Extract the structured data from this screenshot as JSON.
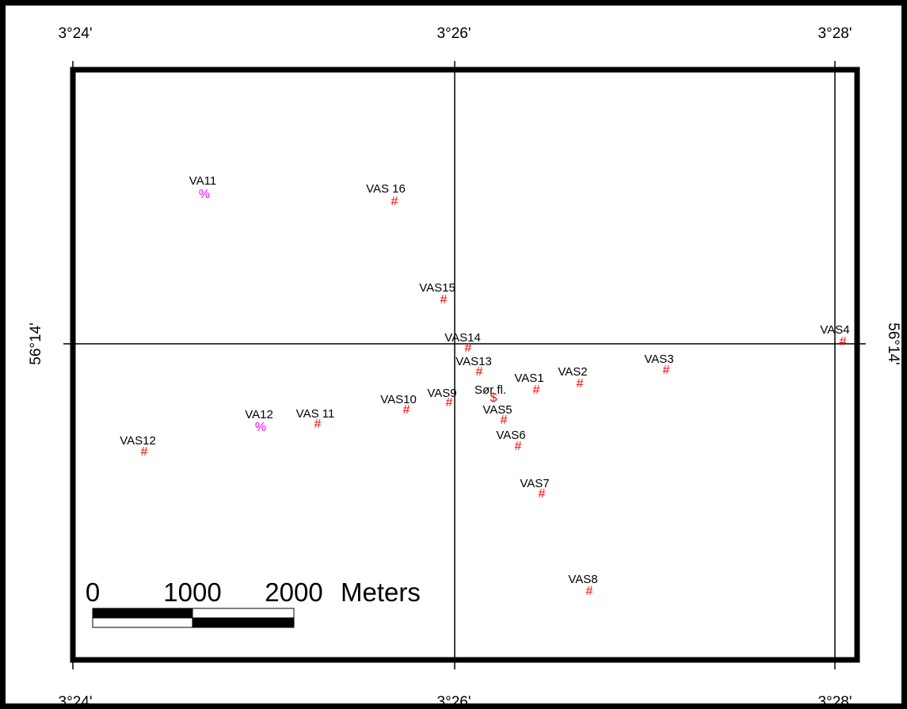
{
  "map": {
    "lon_labels": [
      {
        "name": "lon-3-24",
        "text": "3°24'"
      },
      {
        "name": "lon-3-26",
        "text": "3°26'"
      },
      {
        "name": "lon-3-28",
        "text": "3°28'"
      }
    ],
    "lat_labels": [
      {
        "name": "lat-56-14",
        "text": "56°14'"
      }
    ],
    "colors": {
      "frame": "#000000",
      "hash_marker": "#ff0000",
      "percent_marker": "#ff00ff",
      "dollar_marker": "#ff0000"
    },
    "sites": [
      {
        "name": "VA11",
        "label": "VA11",
        "symbol": "%"
      },
      {
        "name": "VAS16",
        "label": "VAS 16",
        "symbol": "#"
      },
      {
        "name": "VAS15",
        "label": "VAS15",
        "symbol": "#"
      },
      {
        "name": "VAS14",
        "label": "VAS14",
        "symbol": "#"
      },
      {
        "name": "VAS4",
        "label": "VAS4",
        "symbol": "#"
      },
      {
        "name": "VAS13",
        "label": "VAS13",
        "symbol": "#"
      },
      {
        "name": "VAS3",
        "label": "VAS3",
        "symbol": "#"
      },
      {
        "name": "VAS2",
        "label": "VAS2",
        "symbol": "#"
      },
      {
        "name": "VAS1",
        "label": "VAS1",
        "symbol": "#"
      },
      {
        "name": "Sorfl",
        "label": "Sør fl.",
        "symbol": "$"
      },
      {
        "name": "VAS9",
        "label": "VAS9",
        "symbol": "#"
      },
      {
        "name": "VAS10",
        "label": "VAS10",
        "symbol": "#"
      },
      {
        "name": "VAS5",
        "label": "VAS5",
        "symbol": "#"
      },
      {
        "name": "VAS11",
        "label": "VAS 11",
        "symbol": "#"
      },
      {
        "name": "VA12",
        "label": "VA12",
        "symbol": "%"
      },
      {
        "name": "VAS6",
        "label": "VAS6",
        "symbol": "#"
      },
      {
        "name": "VAS12",
        "label": "VAS12",
        "symbol": "#"
      },
      {
        "name": "VAS7",
        "label": "VAS7",
        "symbol": "#"
      },
      {
        "name": "VAS8",
        "label": "VAS8",
        "symbol": "#"
      }
    ],
    "scale_bar": {
      "labels": [
        "0",
        "1000",
        "2000"
      ],
      "unit": "Meters"
    }
  }
}
